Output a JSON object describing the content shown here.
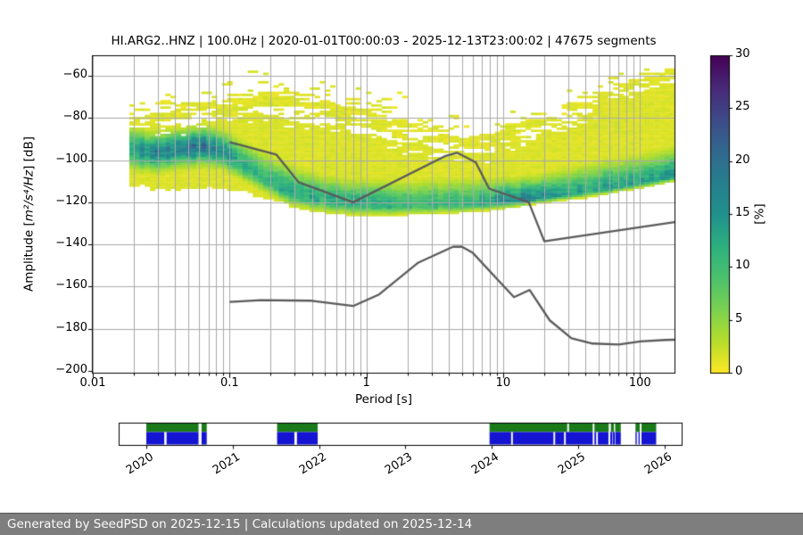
{
  "footer": {
    "text": "Generated by SeedPSD on 2025-12-15 | Calculations updated on 2025-12-14"
  },
  "chart_data": {
    "type": "heatmap",
    "title": "HI.ARG2..HNZ | 100.0Hz | 2020-01-01T00:00:03 - 2025-12-13T23:00:02 | 47675 segments",
    "xlabel": "Period [s]",
    "ylabel_prefix": "Amplitude [",
    "ylabel_math": "m²/s⁴/Hz",
    "ylabel_suffix": "] [dB]",
    "x_scale": "log",
    "xlim": [
      0.01,
      179
    ],
    "ylim": [
      -200.5,
      -49.9
    ],
    "grid": true,
    "x_ticks": {
      "values": [
        0.01,
        0.1,
        1,
        10,
        100
      ],
      "labels": [
        "0.01",
        "0.1",
        "1",
        "10",
        "100"
      ]
    },
    "y_ticks": {
      "values": [
        -60,
        -80,
        -100,
        -120,
        -140,
        -160,
        -180,
        -200
      ],
      "labels": [
        "−60",
        "−80",
        "−100",
        "−120",
        "−140",
        "−160",
        "−180",
        "−200"
      ]
    },
    "colorbar": {
      "label": "[%]",
      "lim": [
        0,
        30
      ],
      "tick_values": [
        0,
        5,
        10,
        15,
        20,
        25,
        30
      ],
      "tick_labels": [
        "0",
        "5",
        "10",
        "15",
        "20",
        "25",
        "30"
      ],
      "colormap": "viridis_r",
      "gradient_stops": [
        [
          0.0,
          "#fde725"
        ],
        [
          0.1,
          "#b5de2b"
        ],
        [
          0.2,
          "#7ad151"
        ],
        [
          0.3,
          "#4ac16d"
        ],
        [
          0.4,
          "#2cb07f"
        ],
        [
          0.5,
          "#21918c"
        ],
        [
          0.6,
          "#277f8e"
        ],
        [
          0.7,
          "#31688e"
        ],
        [
          0.8,
          "#3e4a89"
        ],
        [
          0.9,
          "#482878"
        ],
        [
          1.0,
          "#440154"
        ]
      ]
    },
    "noise_models": {
      "color": "#5a5a5a",
      "nhnm": [
        [
          0.1,
          -91.5
        ],
        [
          0.22,
          -97.4
        ],
        [
          0.32,
          -110.5
        ],
        [
          0.8,
          -120.0
        ],
        [
          3.8,
          -98.0
        ],
        [
          4.6,
          -96.5
        ],
        [
          6.3,
          -101.0
        ],
        [
          7.9,
          -113.5
        ],
        [
          15.4,
          -120.0
        ],
        [
          20.0,
          -138.5
        ],
        [
          179,
          -129.4
        ]
      ],
      "nlnm": [
        [
          0.1,
          -167.3
        ],
        [
          0.17,
          -166.4
        ],
        [
          0.4,
          -166.7
        ],
        [
          0.8,
          -169.2
        ],
        [
          1.24,
          -163.7
        ],
        [
          2.4,
          -148.6
        ],
        [
          4.3,
          -141.1
        ],
        [
          5.0,
          -141.1
        ],
        [
          6.0,
          -144.0
        ],
        [
          10.0,
          -159.5
        ],
        [
          12.0,
          -165.0
        ],
        [
          15.6,
          -161.6
        ],
        [
          21.9,
          -176.0
        ],
        [
          31.6,
          -184.5
        ],
        [
          45.0,
          -187.0
        ],
        [
          70.0,
          -187.5
        ],
        [
          101.0,
          -186.0
        ],
        [
          154.0,
          -185.3
        ],
        [
          179,
          -185.2
        ]
      ]
    },
    "ppsd_distribution": {
      "period_step_octaves": 0.125,
      "period_range": [
        0.0185,
        179
      ],
      "db_bin": 1,
      "field_order": [
        "period",
        "solid_top_db",
        "speckle_top_db",
        "bottom_db",
        "mode_db",
        "mode_peak_percent",
        "sigma_up_db",
        "sigma_down_db"
      ],
      "control_points": [
        [
          0.019,
          -81,
          -73,
          -112,
          -94.5,
          14,
          5.5,
          5.5
        ],
        [
          0.028,
          -82,
          -69,
          -113.5,
          -96.5,
          16,
          5,
          5
        ],
        [
          0.045,
          -80,
          -64,
          -114,
          -94.5,
          17,
          5,
          5
        ],
        [
          0.065,
          -78,
          -60,
          -112.5,
          -93.3,
          18,
          5,
          5
        ],
        [
          0.09,
          -76,
          -58,
          -113,
          -96,
          15,
          5.5,
          4.5
        ],
        [
          0.12,
          -74.5,
          -57.5,
          -115,
          -101.5,
          13,
          6,
          4
        ],
        [
          0.18,
          -75.5,
          -57.5,
          -117.5,
          -109,
          12,
          7,
          3.5
        ],
        [
          0.3,
          -77,
          -58.5,
          -120.5,
          -116.5,
          12,
          7,
          3
        ],
        [
          0.5,
          -79,
          -60,
          -122.5,
          -119,
          12,
          6,
          3
        ],
        [
          0.8,
          -82,
          -62.5,
          -124,
          -120.5,
          12,
          6,
          2.8
        ],
        [
          1.5,
          -88,
          -66,
          -124.5,
          -121.3,
          11,
          6,
          2.5
        ],
        [
          3,
          -93,
          -72,
          -124,
          -121.3,
          10,
          6.5,
          2.2
        ],
        [
          5,
          -95,
          -77,
          -123.5,
          -121,
          10.5,
          6.5,
          2
        ],
        [
          8,
          -94,
          -80,
          -122.5,
          -120.2,
          13,
          6,
          1.8
        ],
        [
          12,
          -88,
          -76,
          -121.5,
          -119.3,
          16,
          5.5,
          1.5
        ],
        [
          18,
          -84,
          -71,
          -120.5,
          -118,
          17,
          5.5,
          1.3
        ],
        [
          30,
          -78,
          -64,
          -118.5,
          -116.3,
          13,
          6.5,
          1.2
        ],
        [
          50,
          -71,
          -59.5,
          -116.5,
          -114.3,
          12.5,
          7,
          1.2
        ],
        [
          80,
          -65,
          -57,
          -114,
          -112,
          13,
          7,
          1.2
        ],
        [
          120,
          -61,
          -55.5,
          -112,
          -110,
          13.5,
          7,
          1.2
        ],
        [
          179,
          -60,
          -54.5,
          -110,
          -107.5,
          14,
          7,
          1.2
        ]
      ]
    },
    "availability": {
      "year_ticks": [
        2020,
        2021,
        2022,
        2023,
        2024,
        2025,
        2026
      ],
      "xlim_years": [
        2019.68,
        2026.2
      ],
      "green_color": "#1a7a1a",
      "blue_color": "#1414d2",
      "green_segments": [
        [
          2020.0,
          2020.605
        ],
        [
          2020.64,
          2020.7
        ],
        [
          2021.515,
          2021.985
        ],
        [
          2023.975,
          2024.875
        ],
        [
          2024.895,
          2025.17
        ],
        [
          2025.19,
          2025.355
        ],
        [
          2025.38,
          2025.415
        ],
        [
          2025.43,
          2025.495
        ],
        [
          2025.665,
          2025.715
        ],
        [
          2025.735,
          2025.905
        ]
      ],
      "blue_segments": [
        [
          2020.0,
          2020.208
        ],
        [
          2020.235,
          2020.605
        ],
        [
          2020.64,
          2020.7
        ],
        [
          2021.515,
          2021.715
        ],
        [
          2021.745,
          2021.985
        ],
        [
          2023.975,
          2024.225
        ],
        [
          2024.245,
          2024.715
        ],
        [
          2024.735,
          2024.838
        ],
        [
          2024.858,
          2025.17
        ],
        [
          2025.19,
          2025.21
        ],
        [
          2025.23,
          2025.352
        ],
        [
          2025.373,
          2025.398
        ],
        [
          2025.405,
          2025.425
        ],
        [
          2025.432,
          2025.495
        ],
        [
          2025.665,
          2025.68
        ],
        [
          2025.7,
          2025.715
        ],
        [
          2025.735,
          2025.905
        ]
      ]
    }
  }
}
